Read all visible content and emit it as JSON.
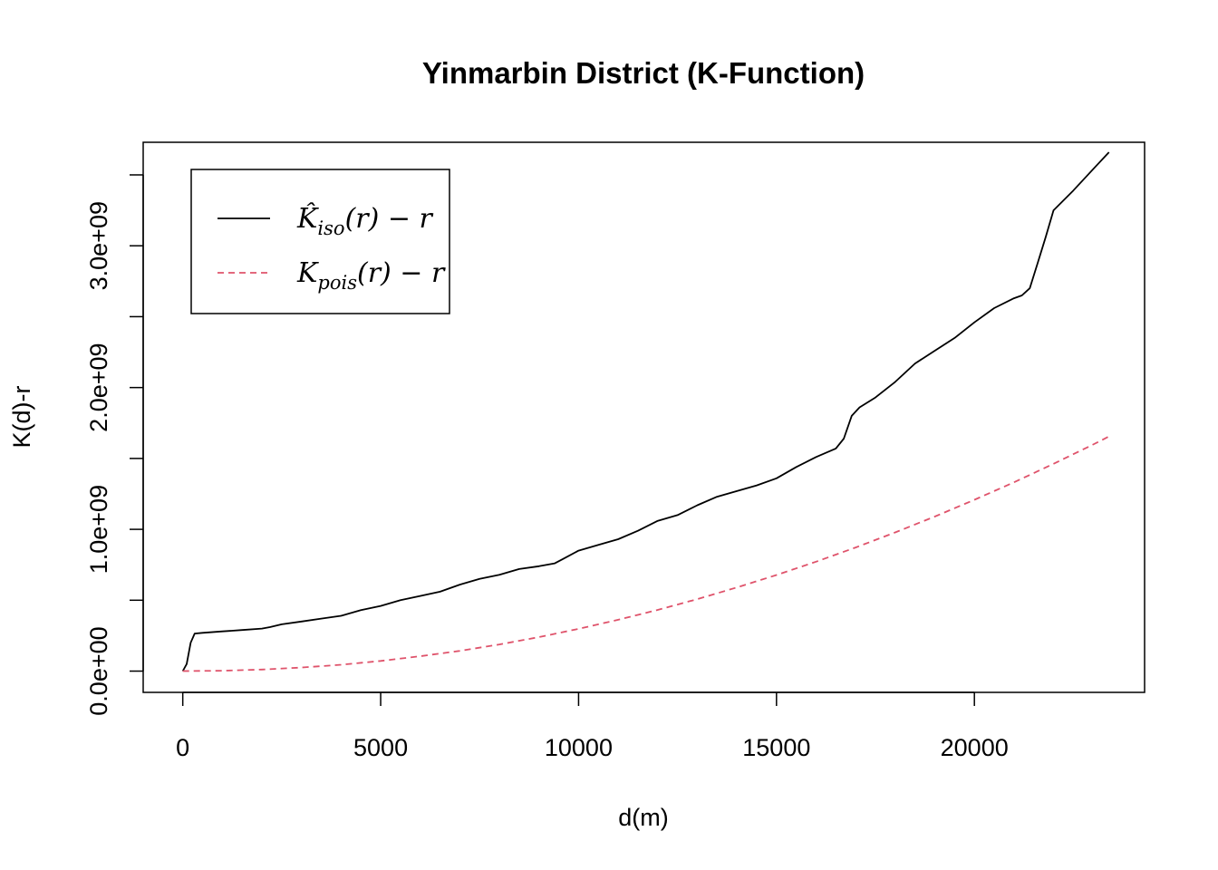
{
  "chart_data": {
    "type": "line",
    "title": "Yinmarbin District (K-Function)",
    "xlabel": "d(m)",
    "ylabel": "K(d)-r",
    "xlim": [
      -1000,
      24300
    ],
    "ylim": [
      -150000000,
      3730000000
    ],
    "x_ticks": [
      0,
      5000,
      10000,
      15000,
      20000
    ],
    "x_tick_labels": [
      "0",
      "5000",
      "10000",
      "15000",
      "20000"
    ],
    "y_ticks": [
      0,
      500000000,
      1000000000,
      1500000000,
      2000000000,
      2500000000,
      3000000000,
      3500000000
    ],
    "y_tick_labels": [
      "0.0e+00",
      "",
      "1.0e+09",
      "",
      "2.0e+09",
      "",
      "3.0e+09",
      ""
    ],
    "grid": false,
    "legend_position": "top-left",
    "series": [
      {
        "name": "iso",
        "legend": {
          "main": "K̂",
          "sub": "iso",
          "tail": "(r) − r"
        },
        "color": "#000000",
        "dash": "solid",
        "x": [
          0,
          100,
          200,
          300,
          500,
          1000,
          1500,
          2000,
          2200,
          2500,
          3000,
          3500,
          4000,
          4500,
          5000,
          5500,
          6000,
          6500,
          7000,
          7500,
          8000,
          8500,
          9000,
          9400,
          9600,
          10000,
          10500,
          11000,
          11500,
          12000,
          12500,
          13000,
          13500,
          14000,
          14500,
          15000,
          15500,
          16000,
          16500,
          16700,
          16900,
          17100,
          17500,
          18000,
          18500,
          19000,
          19500,
          20000,
          20500,
          21000,
          21200,
          21400,
          21600,
          21800,
          22000,
          22500,
          23000,
          23400
        ],
        "values": [
          0,
          50000000,
          200000000,
          265000000,
          270000000,
          280000000,
          290000000,
          300000000,
          310000000,
          330000000,
          350000000,
          370000000,
          390000000,
          430000000,
          460000000,
          500000000,
          530000000,
          560000000,
          610000000,
          650000000,
          680000000,
          720000000,
          740000000,
          760000000,
          790000000,
          850000000,
          890000000,
          930000000,
          990000000,
          1060000000,
          1100000000,
          1170000000,
          1230000000,
          1270000000,
          1310000000,
          1360000000,
          1440000000,
          1510000000,
          1570000000,
          1640000000,
          1800000000,
          1860000000,
          1930000000,
          2040000000,
          2170000000,
          2260000000,
          2350000000,
          2460000000,
          2560000000,
          2630000000,
          2650000000,
          2700000000,
          2880000000,
          3060000000,
          3250000000,
          3390000000,
          3540000000,
          3660000000
        ]
      },
      {
        "name": "pois",
        "legend": {
          "main": "K",
          "sub": "pois",
          "tail": "(r) − r"
        },
        "color": "#DF536B",
        "dash": "dashed",
        "x": [
          0,
          1000,
          2000,
          3000,
          4000,
          5000,
          6000,
          7000,
          8000,
          9000,
          10000,
          11000,
          12000,
          13000,
          14000,
          15000,
          16000,
          17000,
          18000,
          19000,
          20000,
          21000,
          22000,
          23000,
          23400
        ],
        "values": [
          0,
          3000000,
          11000000,
          25000000,
          45000000,
          72000000,
          105000000,
          143000000,
          188000000,
          240000000,
          298000000,
          362000000,
          432000000,
          508000000,
          590000000,
          678000000,
          772000000,
          872000000,
          978000000,
          1090000000,
          1208000000,
          1332000000,
          1462000000,
          1598000000,
          1655000000
        ]
      }
    ]
  }
}
